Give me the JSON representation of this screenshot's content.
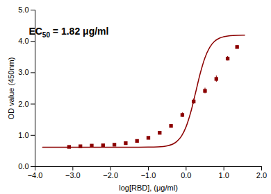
{
  "chart_data": {
    "type": "scatter",
    "xlabel": "log[RBD], (μg/ml)",
    "ylabel": "OD value (450nm)",
    "annotation": {
      "text": "EC",
      "subscript": "50",
      "text_after": " = 1.82 μg/ml"
    },
    "xlim": [
      -4,
      2
    ],
    "ylim": [
      0,
      5
    ],
    "xticks": [
      -4,
      -3,
      -2,
      -1,
      0,
      1,
      2
    ],
    "yticks": [
      0,
      1,
      2,
      3,
      4,
      5
    ],
    "grid": false,
    "series": [
      {
        "type": "scatter",
        "marker": "square",
        "color": "#8B0000",
        "x": [
          -3.1,
          -2.8,
          -2.5,
          -2.2,
          -1.9,
          -1.6,
          -1.3,
          -1.0,
          -0.7,
          -0.4,
          -0.1,
          0.2,
          0.5,
          0.8,
          1.1,
          1.35
        ],
        "values": [
          0.63,
          0.65,
          0.67,
          0.68,
          0.7,
          0.75,
          0.82,
          0.92,
          1.08,
          1.3,
          1.65,
          2.08,
          2.42,
          2.8,
          3.45,
          3.82
        ],
        "yerr": [
          0.02,
          0.02,
          0.02,
          0.02,
          0.02,
          0.02,
          0.03,
          0.03,
          0.04,
          0.05,
          0.07,
          0.08,
          0.09,
          0.1,
          0.07,
          0.05
        ]
      },
      {
        "type": "line",
        "line_style": "solid",
        "color": "#8B0000",
        "x": [
          -3.8,
          -3.5,
          -3.0,
          -2.5,
          -2.0,
          -1.5,
          -1.25,
          -1.0,
          -0.75,
          -0.5,
          -0.25,
          -0.125,
          0,
          0.125,
          0.25,
          0.375,
          0.5,
          0.625,
          0.75,
          0.875,
          1.0,
          1.25,
          1.5,
          1.55
        ],
        "values": [
          0.62,
          0.62,
          0.62,
          0.62,
          0.62001,
          0.62014,
          0.6206,
          0.6225,
          0.6307,
          0.6645,
          0.8004,
          0.9717,
          1.2746,
          1.747,
          2.358,
          2.9813,
          3.481,
          3.8096,
          3.9986,
          4.099,
          4.1501,
          4.188,
          4.1972,
          4.1979
        ]
      }
    ]
  }
}
